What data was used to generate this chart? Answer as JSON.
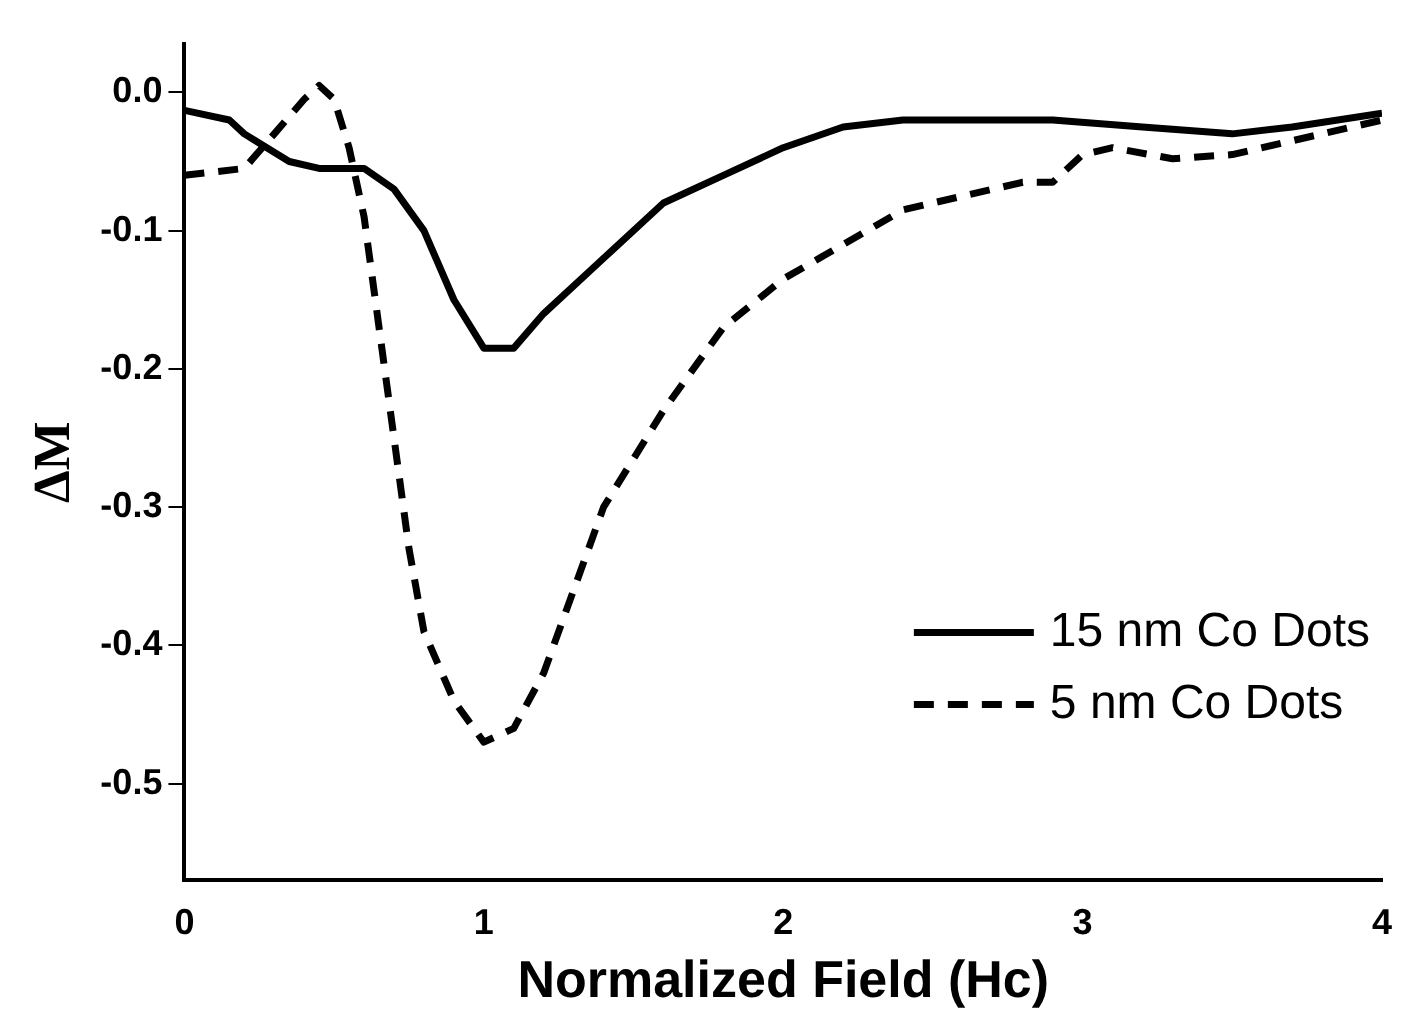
{
  "chart_data": {
    "type": "line",
    "xlabel": "Normalized Field (Hc)",
    "ylabel": "ΔM",
    "xlim": [
      0,
      4
    ],
    "xticks": [
      0,
      1,
      2,
      3,
      4
    ],
    "ylim": [
      -0.57,
      0.035
    ],
    "yticks": [
      {
        "value": 0,
        "label": "0.0"
      },
      -0.1,
      -0.2,
      -0.3,
      -0.4,
      -0.5
    ],
    "grid": false,
    "legend": "bottom right",
    "marker": "none",
    "series": [
      {
        "name": "15 nm Co Dots",
        "color": "#000000",
        "line_style": "solid",
        "x": [
          0,
          0.15,
          0.2,
          0.35,
          0.45,
          0.6,
          0.7,
          0.8,
          0.9,
          1.0,
          1.1,
          1.2,
          1.4,
          1.6,
          1.8,
          2.0,
          2.2,
          2.4,
          2.9,
          3.2,
          3.5,
          3.7,
          4.0
        ],
        "values": [
          -0.013,
          -0.02,
          -0.03,
          -0.05,
          -0.055,
          -0.055,
          -0.07,
          -0.1,
          -0.15,
          -0.185,
          -0.185,
          -0.16,
          -0.12,
          -0.08,
          -0.06,
          -0.04,
          -0.025,
          -0.02,
          -0.02,
          -0.025,
          -0.03,
          -0.025,
          -0.015
        ]
      },
      {
        "name": "5 nm Co Dots",
        "color": "#000000",
        "line_style": "dashed",
        "x": [
          0,
          0.2,
          0.3,
          0.4,
          0.45,
          0.5,
          0.55,
          0.6,
          0.65,
          0.7,
          0.75,
          0.8,
          0.9,
          1.0,
          1.1,
          1.2,
          1.3,
          1.4,
          1.6,
          1.8,
          2.0,
          2.2,
          2.4,
          2.6,
          2.8,
          2.9,
          3.0,
          3.1,
          3.3,
          3.5,
          3.7,
          4.0
        ],
        "values": [
          -0.06,
          -0.055,
          -0.03,
          -0.005,
          0.005,
          -0.005,
          -0.04,
          -0.09,
          -0.17,
          -0.25,
          -0.33,
          -0.39,
          -0.44,
          -0.47,
          -0.46,
          -0.42,
          -0.36,
          -0.3,
          -0.23,
          -0.17,
          -0.135,
          -0.11,
          -0.085,
          -0.075,
          -0.065,
          -0.065,
          -0.045,
          -0.04,
          -0.048,
          -0.045,
          -0.035,
          -0.02
        ]
      }
    ]
  }
}
